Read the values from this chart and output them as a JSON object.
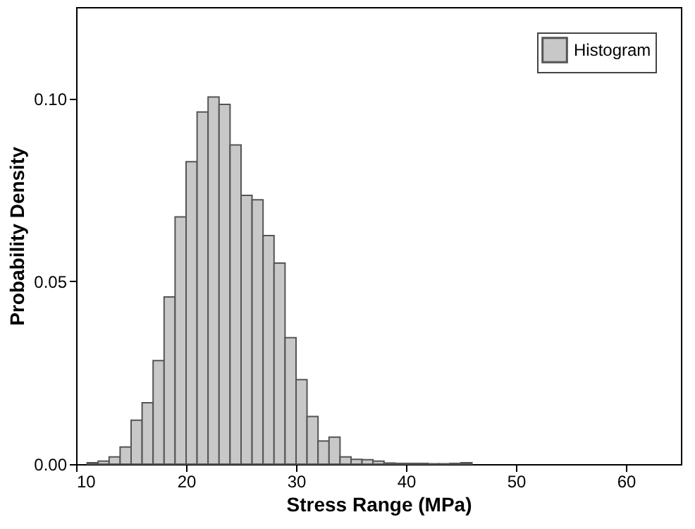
{
  "chart_data": {
    "type": "histogram",
    "xlabel": "Stress Range (MPa)",
    "ylabel": "Probability Density",
    "bins": [
      11,
      12,
      13,
      14,
      15,
      16,
      17,
      18,
      19,
      20,
      21,
      22,
      23,
      24,
      25,
      26,
      27,
      28,
      29,
      30,
      31,
      32,
      33,
      34,
      35,
      36,
      37,
      38,
      39,
      40,
      41,
      42,
      43,
      44,
      45,
      46
    ],
    "series": [
      {
        "name": "Histogram",
        "color": "#c8c8c8",
        "values": [
          0.0004,
          0.0008,
          0.002,
          0.0047,
          0.012,
          0.0168,
          0.0283,
          0.0457,
          0.0676,
          0.0827,
          0.0963,
          0.1004,
          0.0984,
          0.0873,
          0.0735,
          0.0723,
          0.0625,
          0.055,
          0.0346,
          0.0231,
          0.013,
          0.0063,
          0.0074,
          0.002,
          0.0013,
          0.0012,
          0.0008,
          0.0003,
          0.0002,
          0.0002,
          0.0002,
          0.0001,
          0.0001,
          0.0002,
          0.0004
        ]
      }
    ],
    "xlim": [
      10,
      65
    ],
    "xticks": [
      10,
      20,
      30,
      40,
      50,
      60
    ],
    "ylim": [
      0,
      0.125
    ],
    "yticks": [
      {
        "value": 0,
        "label": "0.00"
      },
      {
        "value": 0.05,
        "label": "0.05"
      },
      {
        "value": 0.1,
        "label": "0.10"
      }
    ],
    "legend": "top right"
  }
}
